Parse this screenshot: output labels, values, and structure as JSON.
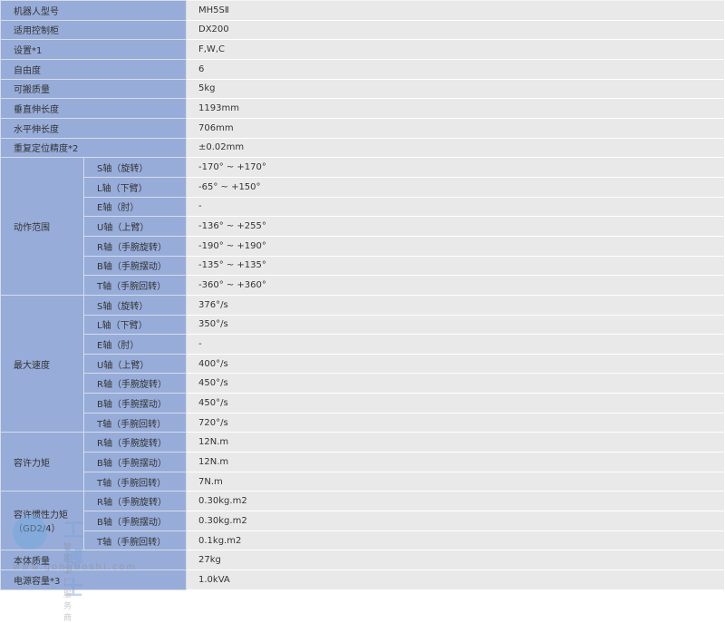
{
  "rows": [
    {
      "label": "机器人型号",
      "value": "MH5SⅡ"
    },
    {
      "label": "适用控制柜",
      "value": "DX200"
    },
    {
      "label": "设置*1",
      "value": "F,W,C"
    },
    {
      "label": "自由度",
      "value": "6"
    },
    {
      "label": "可搬质量",
      "value": "5kg"
    },
    {
      "label": "垂直伸长度",
      "value": "1193mm"
    },
    {
      "label": "水平伸长度",
      "value": "706mm"
    },
    {
      "label": "重复定位精度*2",
      "value": "±0.02mm"
    }
  ],
  "groups": [
    {
      "label": "动作范围",
      "items": [
        {
          "axis": "S轴（旋转）",
          "value": "-170° ~ +170°"
        },
        {
          "axis": "L轴（下臂）",
          "value": "-65° ~ +150°"
        },
        {
          "axis": "E轴（肘）",
          "value": "-"
        },
        {
          "axis": "U轴（上臂）",
          "value": "-136° ~ +255°"
        },
        {
          "axis": "R轴（手腕旋转）",
          "value": "-190° ~ +190°"
        },
        {
          "axis": "B轴（手腕摆动）",
          "value": "-135° ~ +135°"
        },
        {
          "axis": "T轴（手腕回转）",
          "value": "-360° ~ +360°"
        }
      ]
    },
    {
      "label": "最大速度",
      "items": [
        {
          "axis": "S轴（旋转）",
          "value": "376°/s"
        },
        {
          "axis": "L轴（下臂）",
          "value": "350°/s"
        },
        {
          "axis": "E轴（肘）",
          "value": "-"
        },
        {
          "axis": "U轴（上臂）",
          "value": "400°/s"
        },
        {
          "axis": "R轴（手腕旋转）",
          "value": "450°/s"
        },
        {
          "axis": "B轴（手腕摆动）",
          "value": "450°/s"
        },
        {
          "axis": "T轴（手腕回转）",
          "value": "720°/s"
        }
      ]
    },
    {
      "label": "容许力矩",
      "items": [
        {
          "axis": "R轴（手腕旋转）",
          "value": "12N.m"
        },
        {
          "axis": "B轴（手腕摆动）",
          "value": "12N.m"
        },
        {
          "axis": "T轴（手腕回转）",
          "value": "7N.m"
        }
      ]
    },
    {
      "label": "容许惯性力矩（GD2/4）",
      "items": [
        {
          "axis": "R轴（手腕旋转）",
          "value": "0.30kg.m2"
        },
        {
          "axis": "B轴（手腕摆动）",
          "value": "0.30kg.m2"
        },
        {
          "axis": "T轴（手腕回转）",
          "value": "0.1kg.m2"
        }
      ]
    }
  ],
  "tail": [
    {
      "label": "本体质量",
      "value": "27kg"
    },
    {
      "label": "电源容量*3",
      "value": "1.0kVA"
    }
  ],
  "watermark": {
    "brand": "工博士",
    "slogan": "智能工厂服务商",
    "url": "www.gongboshi.com"
  },
  "colors": {
    "label_bg": "#97acd9",
    "value_bg": "#e9e9e9"
  }
}
